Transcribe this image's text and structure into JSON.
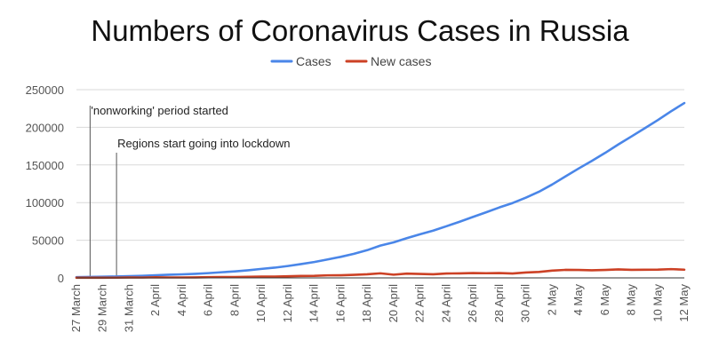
{
  "chart_data": {
    "type": "line",
    "title": "Numbers of Coronavirus Cases in Russia",
    "legend_position": "top",
    "grid": "horizontal",
    "ylim": [
      0,
      250000
    ],
    "yticks": [
      "0",
      "50000",
      "100000",
      "150000",
      "200000",
      "250000"
    ],
    "ytick_values": [
      0,
      50000,
      100000,
      150000,
      200000,
      250000
    ],
    "x": [
      "27 March",
      "28 March",
      "29 March",
      "30 March",
      "31 March",
      "1 April",
      "2 April",
      "3 April",
      "4 April",
      "5 April",
      "6 April",
      "7 April",
      "8 April",
      "9 April",
      "10 April",
      "11 April",
      "12 April",
      "13 April",
      "14 April",
      "15 April",
      "16 April",
      "17 April",
      "18 April",
      "19 April",
      "20 April",
      "21 April",
      "22 April",
      "23 April",
      "24 April",
      "25 April",
      "26 April",
      "27 April",
      "28 April",
      "29 April",
      "30 April",
      "1 May",
      "2 May",
      "3 May",
      "4 May",
      "5 May",
      "6 May",
      "7 May",
      "8 May",
      "9 May",
      "10 May",
      "11 May",
      "12 May"
    ],
    "xtick_labels": [
      "27 March",
      "29 March",
      "31 March",
      "2 April",
      "4 April",
      "6 April",
      "8 April",
      "10 April",
      "12 April",
      "14 April",
      "16 April",
      "18 April",
      "20 April",
      "22 April",
      "24 April",
      "26 April",
      "28 April",
      "30 April",
      "2 May",
      "4 May",
      "6 May",
      "8 May",
      "10 May",
      "12 May"
    ],
    "series": [
      {
        "name": "Cases",
        "color": "#4a86e8",
        "values": [
          1036,
          1264,
          1534,
          1836,
          2337,
          2777,
          3548,
          4149,
          4731,
          5389,
          6343,
          7497,
          8672,
          10131,
          11917,
          13584,
          15770,
          18328,
          21102,
          24490,
          27938,
          32008,
          36793,
          42853,
          47121,
          52763,
          57999,
          62773,
          68622,
          74588,
          80949,
          87147,
          93558,
          99399,
          106498,
          114431,
          124054,
          134687,
          145268,
          155370,
          165929,
          177160,
          187859,
          198676,
          209688,
          221344,
          232243
        ]
      },
      {
        "name": "New cases",
        "color": "#cc4125",
        "values": [
          196,
          228,
          270,
          302,
          501,
          440,
          771,
          601,
          582,
          658,
          954,
          1154,
          1175,
          1459,
          1786,
          1667,
          2186,
          2558,
          2774,
          3388,
          3448,
          4070,
          4785,
          6060,
          4268,
          5642,
          5236,
          4774,
          5849,
          5966,
          6361,
          6198,
          6411,
          5841,
          7099,
          7933,
          9623,
          10633,
          10581,
          10102,
          10559,
          11231,
          10699,
          10817,
          11012,
          11656,
          10899
        ]
      }
    ],
    "annotations": [
      {
        "x": "28 March",
        "text": "'nonworking' period started"
      },
      {
        "x": "30 March",
        "text": "Regions start going into lockdown"
      }
    ]
  }
}
